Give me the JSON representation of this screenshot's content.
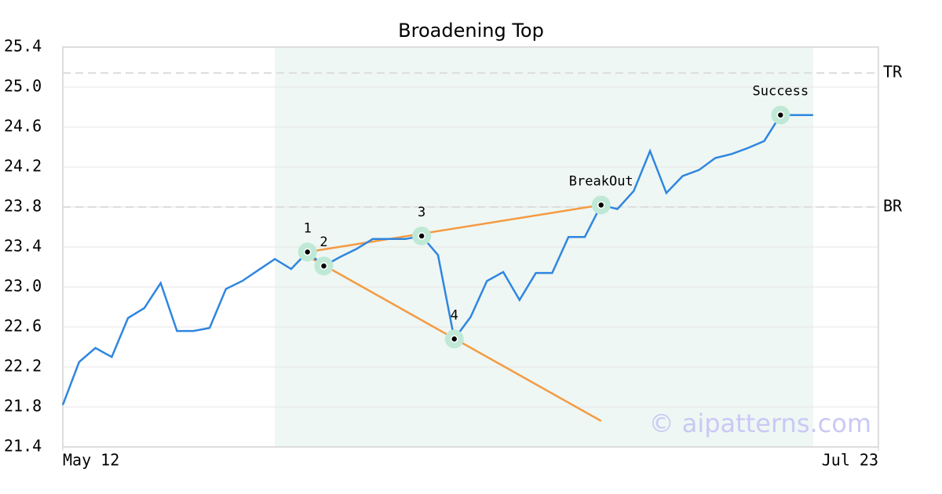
{
  "chart_data": {
    "type": "line",
    "title": "Broadening Top",
    "x": [
      0,
      1,
      2,
      3,
      4,
      5,
      6,
      7,
      8,
      9,
      10,
      11,
      12,
      13,
      14,
      15,
      16,
      17,
      18,
      19,
      20,
      21,
      22,
      23,
      24,
      25,
      26,
      27,
      28,
      29,
      30,
      31,
      32,
      33,
      34,
      35,
      36,
      37,
      38,
      39,
      40,
      41,
      42,
      43,
      44,
      45,
      46
    ],
    "series": [
      {
        "color": "#2f86e0",
        "values": [
          21.82,
          22.25,
          22.39,
          22.3,
          22.69,
          22.79,
          23.04,
          22.56,
          22.56,
          22.59,
          22.98,
          23.06,
          23.17,
          23.28,
          23.18,
          23.35,
          23.21,
          23.3,
          23.38,
          23.48,
          23.48,
          23.48,
          23.51,
          23.32,
          22.48,
          22.7,
          23.06,
          23.15,
          22.87,
          23.14,
          23.14,
          23.5,
          23.5,
          23.82,
          23.78,
          23.96,
          24.36,
          23.94,
          24.11,
          24.17,
          24.29,
          24.33,
          24.39,
          24.46,
          24.72,
          24.72,
          24.72
        ]
      }
    ],
    "trendlines": [
      {
        "color": "#f59a42",
        "x": [
          15,
          33
        ],
        "y": [
          23.35,
          23.82
        ]
      },
      {
        "color": "#f59a42",
        "x": [
          15,
          33
        ],
        "y": [
          23.31,
          21.66
        ]
      }
    ],
    "markers": [
      {
        "label": "1",
        "x": 15,
        "y": 23.35
      },
      {
        "label": "2",
        "x": 16,
        "y": 23.21
      },
      {
        "label": "3",
        "x": 22,
        "y": 23.51
      },
      {
        "label": "4",
        "x": 24,
        "y": 22.48
      },
      {
        "label": "BreakOut",
        "x": 33,
        "y": 23.82
      },
      {
        "label": "Success",
        "x": 44,
        "y": 24.72
      }
    ],
    "levels": [
      {
        "label": "TR",
        "value": 25.14
      },
      {
        "label": "BR",
        "value": 23.8
      }
    ],
    "shade": [
      13,
      46
    ],
    "watermark": "© aipatterns.com",
    "xlim": [
      0,
      50
    ],
    "xticks": [
      {
        "value": 0,
        "label": "May 12"
      },
      {
        "value": 50,
        "label": "Jul 23"
      }
    ],
    "ylim": [
      21.4,
      25.4
    ],
    "yticks": [
      21.4,
      21.8,
      22.2,
      22.6,
      {
        "value": 23,
        "label": "23.0"
      },
      23.4,
      23.8,
      24.2,
      24.6,
      {
        "value": 25,
        "label": "25.0"
      },
      25.4
    ],
    "grid": true
  }
}
